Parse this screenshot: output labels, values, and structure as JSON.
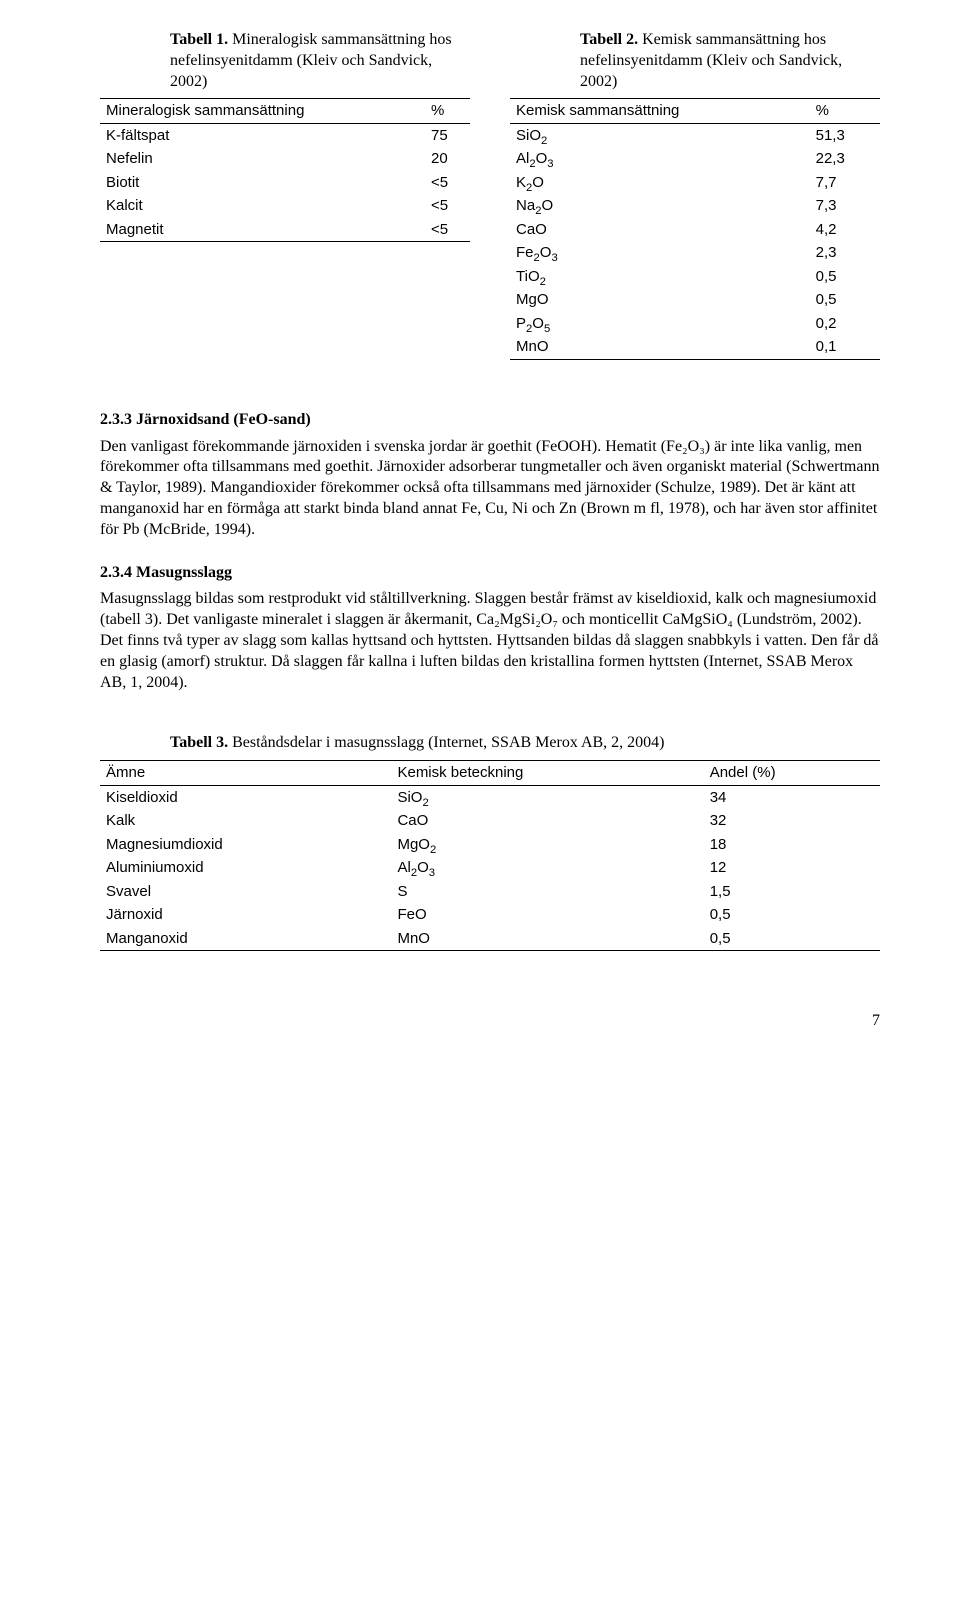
{
  "table1": {
    "caption_bold": "Tabell 1.",
    "caption_rest": " Mineralogisk sammansättning hos nefelinsyenitdamm (Kleiv och Sandvick, 2002)",
    "header": [
      "Mineralogisk sammansättning",
      "%"
    ],
    "rows": [
      [
        "K-fältspat",
        "75"
      ],
      [
        "Nefelin",
        "20"
      ],
      [
        "Biotit",
        "<5"
      ],
      [
        "Kalcit",
        "<5"
      ],
      [
        "Magnetit",
        "<5"
      ]
    ]
  },
  "table2": {
    "caption_bold": "Tabell 2.",
    "caption_rest": " Kemisk sammansättning hos nefelinsyenitdamm (Kleiv och Sandvick, 2002)",
    "header": [
      "Kemisk sammansättning",
      "%"
    ],
    "rows": [
      [
        "SiO<span class=\"sub\">2</span>",
        "51,3"
      ],
      [
        "Al<span class=\"sub\">2</span>O<span class=\"sub\">3</span>",
        "22,3"
      ],
      [
        "K<span class=\"sub\">2</span>O",
        "7,7"
      ],
      [
        "Na<span class=\"sub\">2</span>O",
        "7,3"
      ],
      [
        "CaO",
        "4,2"
      ],
      [
        "Fe<span class=\"sub\">2</span>O<span class=\"sub\">3</span>",
        "2,3"
      ],
      [
        "TiO<span class=\"sub\">2</span>",
        "0,5"
      ],
      [
        "MgO",
        "0,5"
      ],
      [
        "P<span class=\"sub\">2</span>O<span class=\"sub\">5</span>",
        "0,2"
      ],
      [
        "MnO",
        "0,1"
      ]
    ]
  },
  "section233": {
    "heading": "2.3.3 Järnoxidsand (FeO-sand)",
    "para": "Den vanligast förekommande järnoxiden i svenska jordar är goethit (FeOOH). Hematit (Fe₂O₃) är inte lika vanlig, men förekommer ofta tillsammans med goethit. Järnoxider adsorberar tungmetaller och även organiskt material (Schwertmann & Taylor, 1989). Mangandioxider förekommer också ofta tillsammans med järnoxider (Schulze, 1989). Det är känt att manganoxid har en förmåga att starkt binda bland annat Fe, Cu, Ni och Zn (Brown m fl, 1978), och har även stor affinitet för Pb (McBride, 1994)."
  },
  "section234": {
    "heading": "2.3.4 Masugnsslagg",
    "para": "Masugnsslagg bildas som restprodukt vid ståltillverkning. Slaggen består främst av kiseldioxid, kalk och magnesiumoxid (tabell 3). Det vanligaste mineralet i slaggen är åkermanit, Ca₂MgSi₂O₇ och monticellit CaMgSiO₄ (Lundström, 2002). Det finns två typer av slagg som kallas hyttsand och hyttsten. Hyttsanden bildas då slaggen snabbkyls i vatten. Den får då en glasig (amorf) struktur. Då slaggen får kallna i luften bildas den kristallina formen hyttsten (Internet, SSAB Merox AB, 1, 2004)."
  },
  "table3": {
    "caption_bold": "Tabell 3.",
    "caption_rest": " Beståndsdelar i masugnsslagg (Internet, SSAB Merox AB, 2, 2004)",
    "header": [
      "Ämne",
      "Kemisk beteckning",
      "Andel (%)"
    ],
    "rows": [
      [
        "Kiseldioxid",
        "SiO<span class=\"sub\">2</span>",
        "34"
      ],
      [
        "Kalk",
        "CaO",
        "32"
      ],
      [
        "Magnesiumdioxid",
        "MgO<span class=\"sub\">2</span>",
        "18"
      ],
      [
        "Aluminiumoxid",
        "Al<span class=\"sub\">2</span>O<span class=\"sub\">3</span>",
        "12"
      ],
      [
        "Svavel",
        "S",
        "1,5"
      ],
      [
        "Järnoxid",
        "FeO",
        "0,5"
      ],
      [
        "Manganoxid",
        "MnO",
        "0,5"
      ]
    ]
  },
  "pageNumber": "7"
}
